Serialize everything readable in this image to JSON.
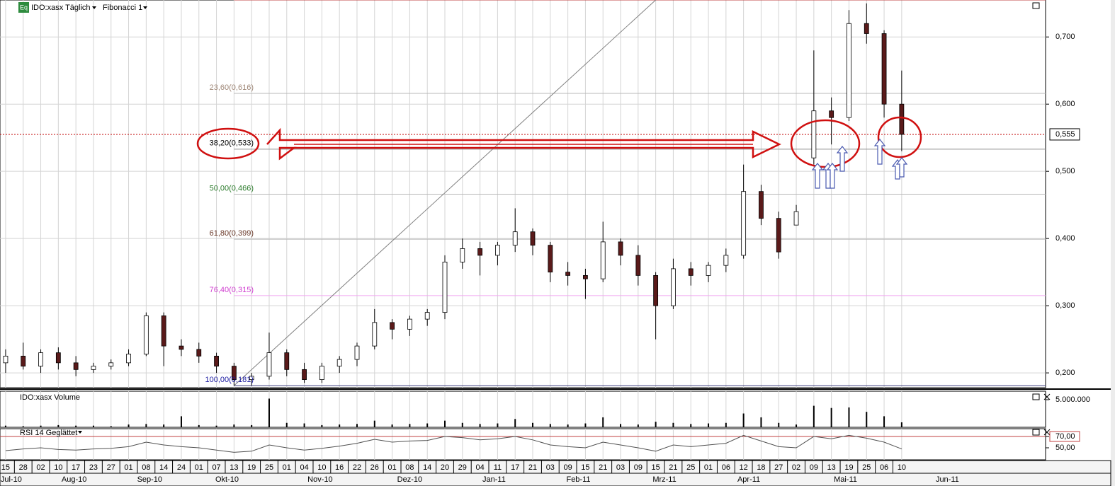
{
  "header": {
    "icon": "Eq",
    "symbol": "IDO:xasx Täglich",
    "indicator": "Fibonacci 1"
  },
  "chart_data": [
    {
      "type": "candlestick",
      "x": [
        0,
        1,
        2,
        3,
        4,
        5,
        6,
        7,
        8,
        9,
        10,
        11,
        12,
        13,
        14,
        15,
        16,
        17,
        18,
        19,
        20,
        21,
        22,
        23,
        24,
        25,
        26,
        27,
        28,
        29,
        30,
        31,
        32,
        33,
        34,
        35,
        36,
        37,
        38,
        39,
        40,
        41,
        42,
        43,
        44,
        45,
        46,
        47,
        48,
        49,
        50,
        51
      ],
      "open": [
        0.215,
        0.225,
        0.21,
        0.23,
        0.215,
        0.205,
        0.21,
        0.215,
        0.228,
        0.285,
        0.24,
        0.235,
        0.225,
        0.21,
        0.19,
        0.195,
        0.23,
        0.205,
        0.19,
        0.21,
        0.22,
        0.24,
        0.275,
        0.265,
        0.28,
        0.29,
        0.365,
        0.385,
        0.375,
        0.39,
        0.41,
        0.39,
        0.35,
        0.345,
        0.34,
        0.395,
        0.375,
        0.345,
        0.3,
        0.355,
        0.345,
        0.36,
        0.375,
        0.47,
        0.43,
        0.42,
        0.52,
        0.59,
        0.58,
        0.72,
        0.705,
        0.6
      ],
      "high": [
        0.235,
        0.245,
        0.235,
        0.238,
        0.225,
        0.215,
        0.22,
        0.235,
        0.29,
        0.29,
        0.25,
        0.245,
        0.23,
        0.215,
        0.2,
        0.26,
        0.235,
        0.215,
        0.215,
        0.225,
        0.245,
        0.295,
        0.28,
        0.285,
        0.295,
        0.375,
        0.4,
        0.395,
        0.395,
        0.445,
        0.415,
        0.395,
        0.365,
        0.355,
        0.425,
        0.4,
        0.39,
        0.35,
        0.37,
        0.365,
        0.365,
        0.385,
        0.51,
        0.48,
        0.44,
        0.45,
        0.68,
        0.61,
        0.74,
        0.75,
        0.71,
        0.65
      ],
      "low": [
        0.2,
        0.205,
        0.2,
        0.205,
        0.195,
        0.2,
        0.205,
        0.21,
        0.225,
        0.21,
        0.225,
        0.215,
        0.2,
        0.181,
        0.181,
        0.19,
        0.195,
        0.185,
        0.185,
        0.2,
        0.21,
        0.235,
        0.25,
        0.255,
        0.27,
        0.28,
        0.355,
        0.345,
        0.36,
        0.38,
        0.375,
        0.335,
        0.33,
        0.31,
        0.335,
        0.36,
        0.33,
        0.25,
        0.295,
        0.33,
        0.335,
        0.35,
        0.37,
        0.42,
        0.37,
        0.42,
        0.51,
        0.54,
        0.575,
        0.69,
        0.58,
        0.53
      ],
      "close": [
        0.225,
        0.21,
        0.23,
        0.215,
        0.205,
        0.21,
        0.215,
        0.228,
        0.285,
        0.24,
        0.235,
        0.225,
        0.21,
        0.19,
        0.195,
        0.23,
        0.205,
        0.19,
        0.21,
        0.22,
        0.24,
        0.275,
        0.265,
        0.28,
        0.29,
        0.365,
        0.385,
        0.375,
        0.39,
        0.41,
        0.39,
        0.35,
        0.345,
        0.34,
        0.395,
        0.375,
        0.345,
        0.3,
        0.355,
        0.345,
        0.36,
        0.375,
        0.47,
        0.43,
        0.38,
        0.44,
        0.59,
        0.58,
        0.72,
        0.705,
        0.6,
        0.555
      ],
      "up_color": "#ffffff",
      "down_color": "#5a1a1a",
      "xlim": [
        -0.32,
        59.19
      ],
      "xticks": [
        {
          "value": 0,
          "label": "15"
        },
        {
          "value": 1,
          "label": "28"
        },
        {
          "value": 2,
          "label": "02"
        },
        {
          "value": 3,
          "label": "10"
        },
        {
          "value": 4,
          "label": "17"
        },
        {
          "value": 5,
          "label": "23"
        },
        {
          "value": 6,
          "label": "27"
        },
        {
          "value": 7,
          "label": "01"
        },
        {
          "value": 8,
          "label": "08"
        },
        {
          "value": 9,
          "label": "14"
        },
        {
          "value": 10,
          "label": "24"
        },
        {
          "value": 11,
          "label": "01"
        },
        {
          "value": 12,
          "label": "07"
        },
        {
          "value": 13,
          "label": "13"
        },
        {
          "value": 14,
          "label": "19"
        },
        {
          "value": 15,
          "label": "25"
        },
        {
          "value": 16,
          "label": "01"
        },
        {
          "value": 17,
          "label": "04"
        },
        {
          "value": 18,
          "label": "10"
        },
        {
          "value": 19,
          "label": "16"
        },
        {
          "value": 20,
          "label": "22"
        },
        {
          "value": 21,
          "label": "26"
        },
        {
          "value": 22,
          "label": "01"
        },
        {
          "value": 23,
          "label": "08"
        },
        {
          "value": 24,
          "label": "14"
        },
        {
          "value": 25,
          "label": "20"
        },
        {
          "value": 26,
          "label": "29"
        },
        {
          "value": 27,
          "label": "04"
        },
        {
          "value": 28,
          "label": "11"
        },
        {
          "value": 29,
          "label": "17"
        },
        {
          "value": 30,
          "label": "21"
        },
        {
          "value": 31,
          "label": "03"
        },
        {
          "value": 32,
          "label": "09"
        },
        {
          "value": 33,
          "label": "15"
        },
        {
          "value": 34,
          "label": "21"
        },
        {
          "value": 35,
          "label": "03"
        },
        {
          "value": 36,
          "label": "09"
        },
        {
          "value": 37,
          "label": "15"
        },
        {
          "value": 38,
          "label": "21"
        },
        {
          "value": 39,
          "label": "25"
        },
        {
          "value": 40,
          "label": "01"
        },
        {
          "value": 41,
          "label": "06"
        },
        {
          "value": 42,
          "label": "12"
        },
        {
          "value": 43,
          "label": "18"
        },
        {
          "value": 44,
          "label": "27"
        },
        {
          "value": 45,
          "label": "02"
        },
        {
          "value": 46,
          "label": "09"
        },
        {
          "value": 47,
          "label": "13"
        },
        {
          "value": 48,
          "label": "19"
        },
        {
          "value": 49,
          "label": "25"
        },
        {
          "value": 50,
          "label": "06"
        },
        {
          "value": 51,
          "label": "10"
        }
      ],
      "month_labels": [
        {
          "value": 0.32,
          "label": "Jul-10"
        },
        {
          "value": 3.9,
          "label": "Aug-10"
        },
        {
          "value": 8.2,
          "label": "Sep-10"
        },
        {
          "value": 12.6,
          "label": "Okt-10"
        },
        {
          "value": 17.9,
          "label": "Nov-10"
        },
        {
          "value": 23.0,
          "label": "Dez-10"
        },
        {
          "value": 27.8,
          "label": "Jan-11"
        },
        {
          "value": 32.6,
          "label": "Feb-11"
        },
        {
          "value": 37.5,
          "label": "Mrz-11"
        },
        {
          "value": 42.3,
          "label": "Apr-11"
        },
        {
          "value": 47.8,
          "label": "Mai-11"
        },
        {
          "value": 53.6,
          "label": "Jun-11"
        }
      ],
      "ylim": [
        0.178,
        0.755
      ],
      "yticks": [
        {
          "value": 0.2,
          "label": "0,200"
        },
        {
          "value": 0.3,
          "label": "0,300"
        },
        {
          "value": 0.4,
          "label": "0,400"
        },
        {
          "value": 0.5,
          "label": "0,500"
        },
        {
          "value": 0.6,
          "label": "0,600"
        },
        {
          "value": 0.7,
          "label": "0,700"
        }
      ],
      "grid": true,
      "fib_levels": [
        {
          "value": 0.755,
          "line_color": "#c04040"
        },
        {
          "value": 0.616,
          "label": "23,60(0,616)",
          "color": "#a08878",
          "line_color": "#b8b8b8"
        },
        {
          "value": 0.533,
          "label": "38,20(0,533)",
          "color": "#000000",
          "line_color": "#909090"
        },
        {
          "value": 0.466,
          "label": "50,00(0,466)",
          "color": "#2e7d2e",
          "line_color": "#b8b8b8"
        },
        {
          "value": 0.399,
          "label": "61,80(0,399)",
          "color": "#6b3a2a",
          "line_color": "#b8b8b8"
        },
        {
          "value": 0.315,
          "label": "76,40(0,315)",
          "color": "#d040d0",
          "line_color": "#f0a8f0"
        },
        {
          "value": 0.181,
          "label": "100,00(0,181)",
          "color": "#1a1aa0",
          "line_color": "#404080"
        }
      ],
      "trendline": {
        "x": [
          13,
          37
        ],
        "y": [
          0.181,
          0.755
        ],
        "color": "#808080"
      },
      "last_price": {
        "value": 0.555,
        "label": "0,555",
        "color": "#c00000"
      }
    },
    {
      "type": "bar",
      "title": "IDO:xasx Volume",
      "color": "#000000",
      "values": [
        300000,
        200000,
        300000,
        400000,
        300000,
        300000,
        200000,
        500000,
        600000,
        500000,
        2000000,
        400000,
        300000,
        500000,
        400000,
        5200000,
        800000,
        700000,
        400000,
        500000,
        600000,
        1200000,
        500000,
        600000,
        700000,
        1200000,
        800000,
        600000,
        700000,
        1500000,
        800000,
        600000,
        500000,
        700000,
        1800000,
        600000,
        500000,
        1000000,
        800000,
        600000,
        700000,
        800000,
        2500000,
        1800000,
        800000,
        500000,
        3900000,
        3500000,
        3600000,
        2800000,
        2000000,
        900000
      ],
      "ylim": [
        0,
        6540000
      ],
      "yticks": [
        {
          "value": 5000000,
          "label": "5.000.000"
        }
      ]
    },
    {
      "type": "line",
      "title": "RSI 14 Geglättet",
      "color": "#505050",
      "values": [
        45,
        48,
        50,
        47,
        46,
        48,
        49,
        52,
        60,
        55,
        52,
        50,
        46,
        42,
        44,
        55,
        50,
        46,
        49,
        53,
        58,
        65,
        60,
        62,
        63,
        70,
        68,
        64,
        66,
        70,
        64,
        55,
        52,
        50,
        60,
        55,
        50,
        44,
        55,
        52,
        55,
        58,
        72,
        62,
        52,
        50,
        70,
        66,
        72,
        67,
        60,
        48
      ],
      "ylim": [
        28.75,
        83.75
      ],
      "yticks": [
        {
          "value": 70,
          "label": "70,00",
          "color": "#c04040"
        },
        {
          "value": 50,
          "label": "50,00"
        }
      ]
    }
  ]
}
